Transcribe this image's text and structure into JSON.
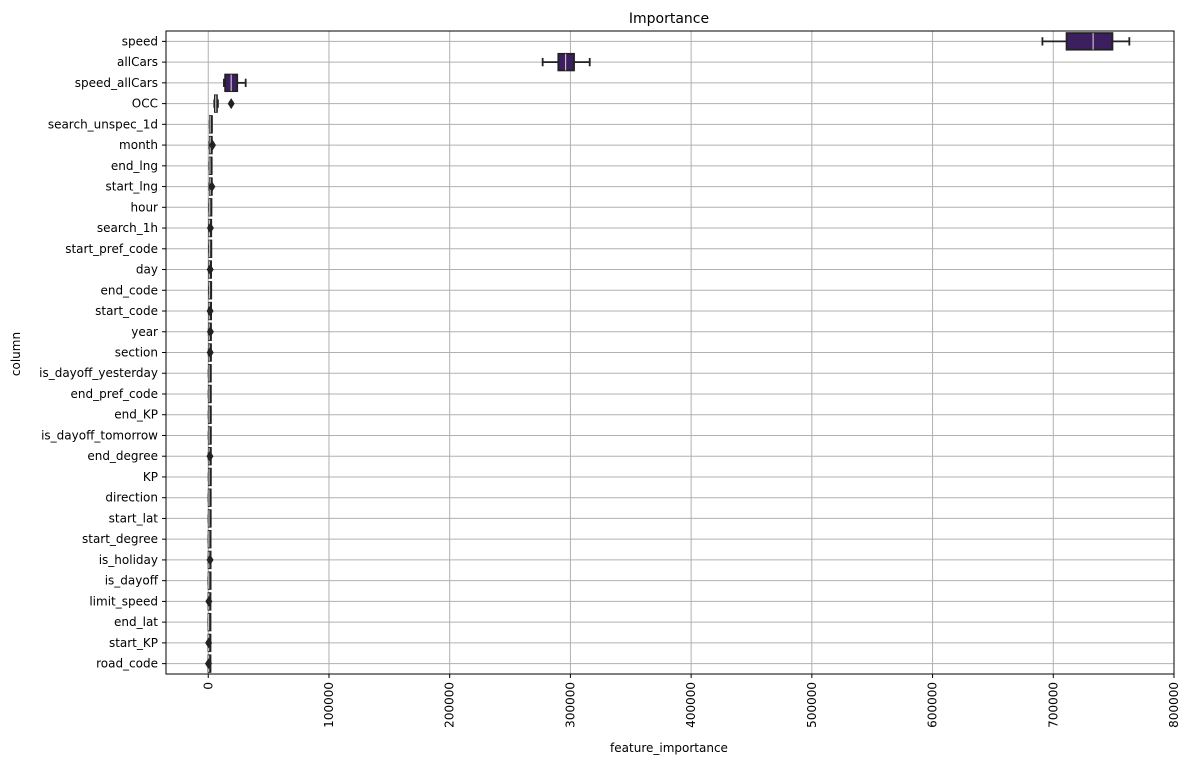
{
  "chart_data": {
    "type": "box",
    "orientation": "horizontal",
    "title": "Importance",
    "xlabel": "feature_importance",
    "ylabel": "column",
    "xlim": [
      -35000,
      800000
    ],
    "xticks": [
      0,
      100000,
      200000,
      300000,
      400000,
      500000,
      600000,
      700000,
      800000
    ],
    "grid": true,
    "box_color": "#3b1f5e",
    "line_color": "#222222",
    "categories": [
      "speed",
      "allCars",
      "speed_allCars",
      "OCC",
      "search_unspec_1d",
      "month",
      "end_lng",
      "start_lng",
      "hour",
      "search_1h",
      "start_pref_code",
      "day",
      "end_code",
      "start_code",
      "year",
      "section",
      "is_dayoff_yesterday",
      "end_pref_code",
      "end_KP",
      "is_dayoff_tomorrow",
      "end_degree",
      "KP",
      "direction",
      "start_lat",
      "start_degree",
      "is_holiday",
      "is_dayoff",
      "limit_speed",
      "end_lat",
      "start_KP",
      "road_code"
    ],
    "boxes": [
      {
        "whislo": 691000,
        "q1": 711000,
        "med": 733000,
        "q3": 749000,
        "whishi": 763000,
        "fliers": []
      },
      {
        "whislo": 277000,
        "q1": 290000,
        "med": 296000,
        "q3": 303000,
        "whishi": 316000,
        "fliers": []
      },
      {
        "whislo": 13000,
        "q1": 14000,
        "med": 19000,
        "q3": 24000,
        "whishi": 31000,
        "fliers": []
      },
      {
        "whislo": 5000,
        "q1": 5500,
        "med": 6200,
        "q3": 7200,
        "whishi": 8000,
        "fliers": [
          19000
        ]
      },
      {
        "whislo": 1200,
        "q1": 1400,
        "med": 1600,
        "q3": 1800,
        "whishi": 2000,
        "fliers": []
      },
      {
        "whislo": 1000,
        "q1": 1300,
        "med": 1600,
        "q3": 1900,
        "whishi": 2300,
        "fliers": [
          3500
        ]
      },
      {
        "whislo": 1000,
        "q1": 1200,
        "med": 1400,
        "q3": 1600,
        "whishi": 1800,
        "fliers": []
      },
      {
        "whislo": 1000,
        "q1": 1300,
        "med": 1600,
        "q3": 1900,
        "whishi": 2300,
        "fliers": [
          3000
        ]
      },
      {
        "whislo": 800,
        "q1": 1000,
        "med": 1200,
        "q3": 1400,
        "whishi": 1700,
        "fliers": []
      },
      {
        "whislo": 600,
        "q1": 800,
        "med": 1000,
        "q3": 1200,
        "whishi": 1400,
        "fliers": [
          1800
        ]
      },
      {
        "whislo": 700,
        "q1": 900,
        "med": 1100,
        "q3": 1300,
        "whishi": 1500,
        "fliers": []
      },
      {
        "whislo": 500,
        "q1": 700,
        "med": 900,
        "q3": 1100,
        "whishi": 1300,
        "fliers": [
          1600
        ]
      },
      {
        "whislo": 600,
        "q1": 800,
        "med": 1000,
        "q3": 1200,
        "whishi": 1400,
        "fliers": []
      },
      {
        "whislo": 500,
        "q1": 700,
        "med": 900,
        "q3": 1100,
        "whishi": 1300,
        "fliers": [
          1500
        ]
      },
      {
        "whislo": 400,
        "q1": 600,
        "med": 800,
        "q3": 1000,
        "whishi": 1200,
        "fliers": [
          1800
        ]
      },
      {
        "whislo": 400,
        "q1": 600,
        "med": 800,
        "q3": 1000,
        "whishi": 1200,
        "fliers": [
          1600
        ]
      },
      {
        "whislo": 300,
        "q1": 500,
        "med": 700,
        "q3": 900,
        "whishi": 1100,
        "fliers": []
      },
      {
        "whislo": 300,
        "q1": 500,
        "med": 700,
        "q3": 900,
        "whishi": 1100,
        "fliers": []
      },
      {
        "whislo": 300,
        "q1": 500,
        "med": 700,
        "q3": 900,
        "whishi": 1100,
        "fliers": []
      },
      {
        "whislo": 300,
        "q1": 500,
        "med": 700,
        "q3": 900,
        "whishi": 1100,
        "fliers": []
      },
      {
        "whislo": 300,
        "q1": 500,
        "med": 700,
        "q3": 900,
        "whishi": 1100,
        "fliers": [
          1400
        ]
      },
      {
        "whislo": 300,
        "q1": 500,
        "med": 700,
        "q3": 900,
        "whishi": 1100,
        "fliers": []
      },
      {
        "whislo": 200,
        "q1": 400,
        "med": 600,
        "q3": 800,
        "whishi": 1000,
        "fliers": []
      },
      {
        "whislo": 200,
        "q1": 400,
        "med": 600,
        "q3": 800,
        "whishi": 1000,
        "fliers": []
      },
      {
        "whislo": 200,
        "q1": 300,
        "med": 500,
        "q3": 700,
        "whishi": 900,
        "fliers": []
      },
      {
        "whislo": 200,
        "q1": 300,
        "med": 500,
        "q3": 700,
        "whishi": 900,
        "fliers": [
          1500
        ]
      },
      {
        "whislo": 100,
        "q1": 300,
        "med": 400,
        "q3": 600,
        "whishi": 800,
        "fliers": []
      },
      {
        "whislo": 100,
        "q1": 200,
        "med": 400,
        "q3": 600,
        "whishi": 800,
        "fliers": [
          500
        ]
      },
      {
        "whislo": 100,
        "q1": 200,
        "med": 300,
        "q3": 500,
        "whishi": 700,
        "fliers": []
      },
      {
        "whislo": 100,
        "q1": 200,
        "med": 300,
        "q3": 500,
        "whishi": 700,
        "fliers": [
          300
        ]
      },
      {
        "whislo": 100,
        "q1": 200,
        "med": 300,
        "q3": 400,
        "whishi": 600,
        "fliers": [
          200
        ]
      }
    ]
  }
}
